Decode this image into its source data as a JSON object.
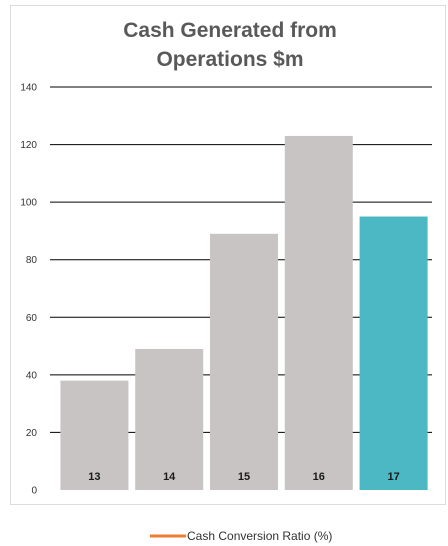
{
  "chart_data": {
    "type": "bar",
    "title_lines": [
      "Cash Generated from",
      "Operations $m"
    ],
    "categories": [
      "13",
      "14",
      "15",
      "16",
      "17"
    ],
    "values": [
      38,
      49,
      89,
      123,
      95
    ],
    "ylim": [
      0,
      140
    ],
    "yticks": [
      0,
      20,
      40,
      60,
      80,
      100,
      120,
      140
    ],
    "grid": true,
    "colors": {
      "bar_default": "#c8c4c4",
      "bar_highlight": "#4bb8c3",
      "gridline": "#000000",
      "legend_line": "#ed7d31"
    },
    "highlight_index": 4,
    "legend": [
      {
        "label": "Cash Conversion Ratio (%)",
        "type": "line"
      }
    ],
    "legend_position": "bottom"
  }
}
